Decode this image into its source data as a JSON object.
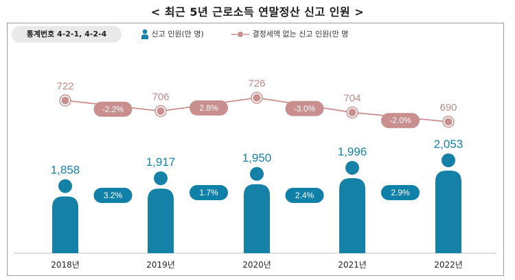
{
  "title": "< 최근 5년 근로소득 연말정산 신고 인원 >",
  "stat_badge": "통계번호 4-2-1, 4-2-4",
  "legend": {
    "filers": "신고 인원(만 명)",
    "no_tax": "결정세액 없는 신고 인원(만 명"
  },
  "colors": {
    "bar": "#1581a6",
    "growth_pill": "#0f80a8",
    "line": "#c98f8f",
    "line_pill": "#c98f8f",
    "line_value_text": "#bf8a8a",
    "bar_value_text": "#1581a6",
    "badge_bg": "#e9e9ea"
  },
  "chart_data": {
    "type": "bar+line",
    "title": "< 최근 5년 근로소득 연말정산 신고 인원 >",
    "categories": [
      "2018년",
      "2019년",
      "2020년",
      "2021년",
      "2022년"
    ],
    "series": [
      {
        "name": "신고 인원(만 명)",
        "type": "bar",
        "values": [
          1858,
          1917,
          1950,
          1996,
          2053
        ],
        "labels": [
          "1,858",
          "1,917",
          "1,950",
          "1,996",
          "2,053"
        ]
      },
      {
        "name": "결정세액 없는 신고 인원(만 명",
        "type": "line",
        "values": [
          722,
          706,
          726,
          704,
          690
        ],
        "labels": [
          "722",
          "706",
          "726",
          "704",
          "690"
        ]
      }
    ],
    "bar_growth": [
      "3.2%",
      "1.7%",
      "2.4%",
      "2.9%"
    ],
    "line_growth": [
      "-2.2%",
      "2.8%",
      "-3.0%",
      "-2.0%"
    ],
    "legend_position": "top-left"
  }
}
